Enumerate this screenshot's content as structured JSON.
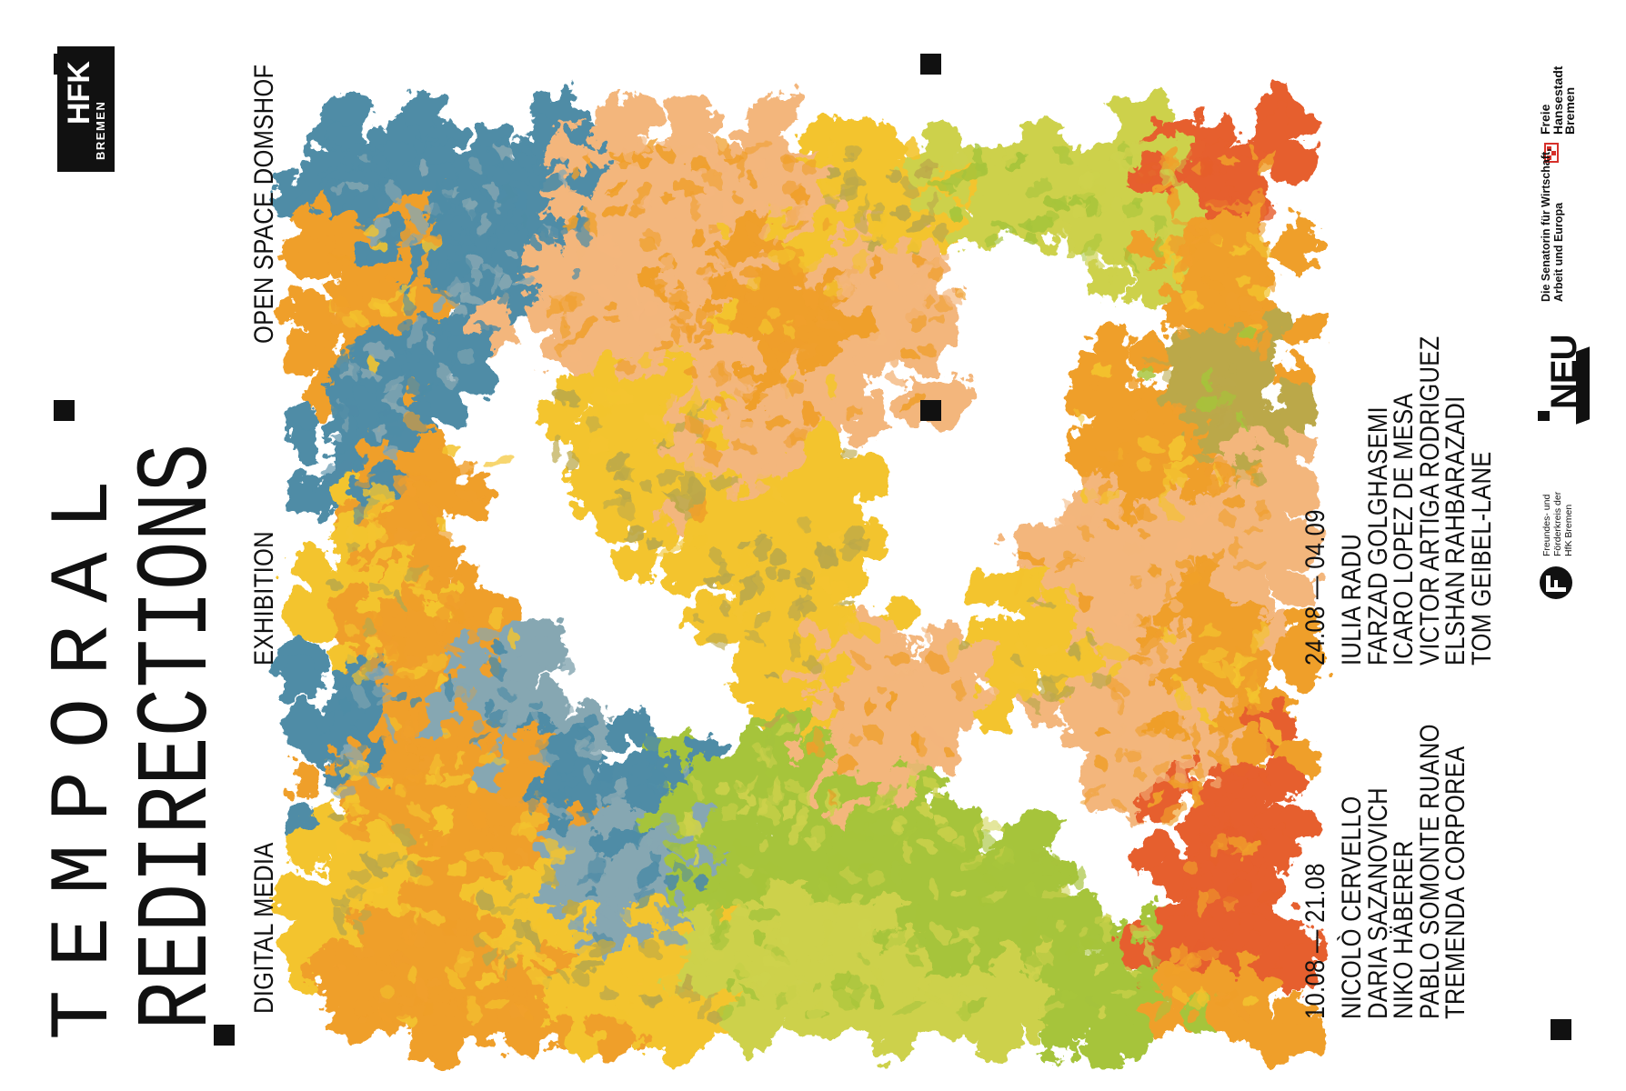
{
  "title": {
    "line1": "TEMPORAL",
    "line2": "REDIRECTIONS"
  },
  "subtitle": {
    "left": "DIGITAL MEDIA",
    "middle": "EXHIBITION",
    "right": "OPEN SPACE DOMSHOF"
  },
  "periods": [
    {
      "dates": "10.08 — 21.08",
      "artists": [
        "NICOLÒ CERVELLO",
        "DARIA SAZANOVICH",
        "NIKO HÄBERER",
        "PABLO SOMONTE RUANO",
        "TREMENDA CORPOREA"
      ]
    },
    {
      "dates": "24.08 — 04.09",
      "artists": [
        "IULIA RADU",
        "FARZAD GOLGHASEMI",
        "ICARO LOPEZ DE MESA",
        "VICTOR ARTIGA RODRIGUEZ",
        "ELSHAN RAHBARAZADI",
        "TOM GEIBEL-LANE"
      ]
    }
  ],
  "logos": {
    "hfk": {
      "main": "HFK",
      "sub": "BREMEN"
    },
    "bremen": {
      "lines": [
        "Freie",
        "Hansestadt",
        "Bremen"
      ],
      "icon": "bremen-key-icon"
    },
    "senatorin": {
      "lines": [
        "Die Senatorin für Wirtschaft,",
        "Arbeit und Europa"
      ]
    },
    "neu": {
      "text": "NEU"
    },
    "freundeskreis": {
      "lines": [
        "Freundes- und",
        "Förderkreis der",
        "HfK Bremen"
      ],
      "icon": "freundeskreis-circle-icon"
    }
  },
  "artwork": {
    "palette": {
      "teal": "#4f8ca6",
      "blue_grey": "#86a7b2",
      "orange": "#ef9f2b",
      "yellow": "#f3c42f",
      "peach": "#f3b67c",
      "green": "#a6c43b",
      "yellow_green": "#cdd14c",
      "red_orange": "#e65f2d",
      "olive": "#bba84a",
      "white": "#ffffff"
    }
  },
  "colors": {
    "ink": "#111111",
    "background": "#ffffff",
    "bremen_red": "#d6302a"
  }
}
